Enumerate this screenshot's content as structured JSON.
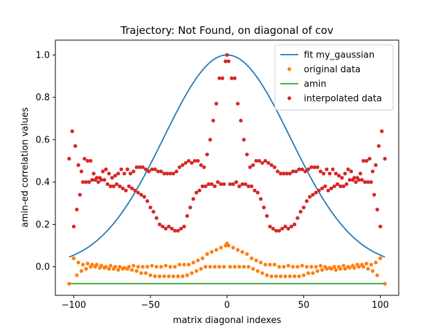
{
  "chart_data": {
    "type": "scatter",
    "title": "Trajectory: Not Found,  on diagonal of cov",
    "xlabel": "matrix diagonal indexes",
    "ylabel": "amin-ed correlation values",
    "xlim": [
      -112,
      112
    ],
    "ylim": [
      -0.135,
      1.07
    ],
    "xticks": [
      -100,
      -50,
      0,
      50,
      100
    ],
    "yticks": [
      0.0,
      0.2,
      0.4,
      0.6,
      0.8,
      1.0
    ],
    "xtick_labels": [
      "−100",
      "−50",
      "0",
      "50",
      "100"
    ],
    "ytick_labels": [
      "0.0",
      "0.2",
      "0.4",
      "0.6",
      "0.8",
      "1.0"
    ],
    "grid": false,
    "legend_position": "top-right",
    "series": [
      {
        "name": "fit my_gaussian",
        "style": "line",
        "color": "#1f77b4",
        "gaussian": {
          "amplitude": 1.0,
          "center": 0,
          "sigma": 41.5
        },
        "x_range": [
          -103,
          103
        ]
      },
      {
        "name": "original data",
        "style": "point",
        "color": "#ff7f0e",
        "x": [
          -103,
          -100,
          -97,
          -94,
          -91,
          -88,
          -85,
          -82,
          -79,
          -76,
          -73,
          -70,
          -67,
          -64,
          -61,
          -58,
          -55,
          -52,
          -49,
          -46,
          -43,
          -40,
          -37,
          -34,
          -31,
          -28,
          -25,
          -22,
          -19,
          -16,
          -13,
          -10,
          -7,
          -4,
          -1,
          0,
          1,
          4,
          7,
          10,
          13,
          16,
          19,
          22,
          25,
          28,
          31,
          34,
          37,
          40,
          43,
          46,
          49,
          52,
          55,
          58,
          61,
          64,
          67,
          70,
          73,
          76,
          79,
          82,
          85,
          88,
          91,
          94,
          97,
          100,
          103
        ],
        "y": [
          -0.08,
          0.04,
          0.02,
          0.01,
          0.015,
          0.01,
          0.01,
          0.005,
          0.0,
          0.005,
          0.0,
          0.0,
          -0.005,
          0.0,
          0.005,
          0.0,
          0.0,
          0.0,
          0.005,
          0.0,
          0.0,
          0.005,
          0.0,
          0.0,
          0.01,
          0.01,
          0.01,
          0.02,
          0.03,
          0.04,
          0.06,
          0.07,
          0.08,
          0.09,
          0.1,
          0.11,
          0.1,
          0.09,
          0.08,
          0.07,
          0.06,
          0.04,
          0.03,
          0.02,
          0.01,
          0.01,
          0.01,
          0.0,
          0.0,
          0.005,
          0.0,
          0.0,
          0.005,
          0.0,
          0.0,
          0.0,
          0.005,
          0.0,
          -0.005,
          0.0,
          0.0,
          0.005,
          0.0,
          0.005,
          0.01,
          0.01,
          0.015,
          0.01,
          0.02,
          0.04,
          -0.08
        ]
      },
      {
        "name": "original data (lower band)",
        "style": "point",
        "color": "#ff7f0e",
        "legend": false,
        "x": [
          -98,
          -95,
          -92,
          -89,
          -86,
          -83,
          -80,
          -77,
          -74,
          -71,
          -68,
          -65,
          -62,
          -59,
          -56,
          -53,
          -50,
          -47,
          -44,
          -41,
          -38,
          -35,
          -32,
          -29,
          -26,
          -23,
          -20,
          -17,
          -14,
          -11,
          -8,
          -5,
          -2,
          2,
          5,
          8,
          11,
          14,
          17,
          20,
          23,
          26,
          29,
          32,
          35,
          38,
          41,
          44,
          47,
          50,
          53,
          56,
          59,
          62,
          65,
          68,
          71,
          74,
          77,
          80,
          83,
          86,
          89,
          92,
          95,
          98
        ],
        "y": [
          -0.04,
          -0.02,
          -0.01,
          0.0,
          0.0,
          -0.005,
          -0.005,
          -0.01,
          -0.01,
          -0.015,
          -0.01,
          -0.01,
          -0.015,
          -0.02,
          -0.03,
          -0.03,
          -0.04,
          -0.045,
          -0.045,
          -0.045,
          -0.045,
          -0.045,
          -0.045,
          -0.045,
          -0.04,
          -0.03,
          -0.02,
          -0.01,
          0.0,
          0.0,
          0.0,
          0.0,
          0.0,
          0.0,
          0.0,
          0.0,
          0.0,
          0.0,
          -0.01,
          -0.02,
          -0.03,
          -0.04,
          -0.045,
          -0.045,
          -0.045,
          -0.045,
          -0.045,
          -0.045,
          -0.045,
          -0.04,
          -0.03,
          -0.03,
          -0.02,
          -0.015,
          -0.01,
          -0.01,
          -0.015,
          -0.01,
          -0.01,
          -0.005,
          -0.005,
          0.0,
          0.0,
          -0.01,
          -0.02,
          -0.04
        ]
      },
      {
        "name": "amin",
        "style": "line",
        "color": "#2ca02c",
        "x": [
          -103,
          103
        ],
        "y": [
          -0.08,
          -0.08
        ]
      },
      {
        "name": "interpolated data",
        "style": "point",
        "color": "#d62728",
        "x": [
          -103,
          -101,
          -99,
          -97,
          -95,
          -93,
          -91,
          -89,
          -87,
          -85,
          -83,
          -81,
          -79,
          -77,
          -75,
          -73,
          -71,
          -69,
          -67,
          -65,
          -63,
          -61,
          -59,
          -57,
          -55,
          -53,
          -51,
          -49,
          -47,
          -45,
          -43,
          -41,
          -39,
          -37,
          -35,
          -33,
          -31,
          -29,
          -27,
          -25,
          -23,
          -21,
          -19,
          -17,
          -15,
          -13,
          -11,
          -9,
          -7,
          -5,
          -3,
          -1,
          0,
          1,
          3,
          5,
          7,
          9,
          11,
          13,
          15,
          17,
          19,
          21,
          23,
          25,
          27,
          29,
          31,
          33,
          35,
          37,
          39,
          41,
          43,
          45,
          47,
          49,
          51,
          53,
          55,
          57,
          59,
          61,
          63,
          65,
          67,
          69,
          71,
          73,
          75,
          77,
          79,
          81,
          83,
          85,
          87,
          89,
          91,
          93,
          95,
          97,
          99,
          101,
          103
        ],
        "y": [
          0.51,
          0.64,
          0.57,
          0.48,
          0.45,
          0.51,
          0.5,
          0.5,
          0.44,
          0.42,
          0.42,
          0.45,
          0.46,
          0.44,
          0.42,
          0.43,
          0.44,
          0.46,
          0.44,
          0.46,
          0.44,
          0.45,
          0.47,
          0.47,
          0.47,
          0.46,
          0.45,
          0.46,
          0.46,
          0.45,
          0.45,
          0.44,
          0.44,
          0.44,
          0.44,
          0.45,
          0.47,
          0.48,
          0.49,
          0.5,
          0.49,
          0.5,
          0.5,
          0.48,
          0.47,
          0.53,
          0.6,
          0.69,
          0.77,
          0.89,
          0.89,
          0.97,
          1.0,
          0.97,
          0.89,
          0.89,
          0.77,
          0.69,
          0.6,
          0.53,
          0.47,
          0.48,
          0.5,
          0.5,
          0.49,
          0.5,
          0.49,
          0.48,
          0.47,
          0.45,
          0.44,
          0.44,
          0.44,
          0.44,
          0.45,
          0.45,
          0.46,
          0.46,
          0.45,
          0.46,
          0.47,
          0.47,
          0.47,
          0.45,
          0.44,
          0.46,
          0.44,
          0.46,
          0.44,
          0.43,
          0.42,
          0.44,
          0.46,
          0.45,
          0.42,
          0.42,
          0.44,
          0.5,
          0.5,
          0.51,
          0.45,
          0.48,
          0.57,
          0.64,
          0.51
        ]
      },
      {
        "name": "interpolated data (lower band)",
        "style": "point",
        "color": "#d62728",
        "legend": false,
        "x": [
          -100,
          -98,
          -96,
          -94,
          -92,
          -90,
          -88,
          -86,
          -84,
          -82,
          -80,
          -78,
          -76,
          -74,
          -72,
          -70,
          -68,
          -66,
          -64,
          -62,
          -60,
          -58,
          -56,
          -54,
          -52,
          -50,
          -48,
          -46,
          -44,
          -42,
          -40,
          -38,
          -36,
          -34,
          -32,
          -30,
          -28,
          -26,
          -24,
          -22,
          -20,
          -18,
          -16,
          -14,
          -12,
          -10,
          -8,
          -6,
          -4,
          -2,
          2,
          4,
          6,
          8,
          10,
          12,
          14,
          16,
          18,
          20,
          22,
          24,
          26,
          28,
          30,
          32,
          34,
          36,
          38,
          40,
          42,
          44,
          46,
          48,
          50,
          52,
          54,
          56,
          58,
          60,
          62,
          64,
          66,
          68,
          70,
          72,
          74,
          76,
          78,
          80,
          82,
          84,
          86,
          88,
          90,
          92,
          94,
          96,
          98,
          100
        ],
        "y": [
          0.19,
          0.27,
          0.34,
          0.4,
          0.4,
          0.4,
          0.41,
          0.41,
          0.4,
          0.41,
          0.41,
          0.39,
          0.38,
          0.38,
          0.39,
          0.38,
          0.37,
          0.36,
          0.38,
          0.37,
          0.36,
          0.35,
          0.34,
          0.33,
          0.31,
          0.28,
          0.26,
          0.23,
          0.2,
          0.19,
          0.18,
          0.19,
          0.18,
          0.17,
          0.17,
          0.18,
          0.19,
          0.24,
          0.28,
          0.32,
          0.35,
          0.36,
          0.38,
          0.38,
          0.39,
          0.39,
          0.38,
          0.4,
          0.39,
          0.39,
          0.39,
          0.39,
          0.4,
          0.38,
          0.39,
          0.39,
          0.38,
          0.38,
          0.36,
          0.35,
          0.32,
          0.28,
          0.24,
          0.19,
          0.18,
          0.17,
          0.17,
          0.18,
          0.19,
          0.18,
          0.19,
          0.2,
          0.23,
          0.26,
          0.28,
          0.31,
          0.33,
          0.34,
          0.35,
          0.36,
          0.37,
          0.38,
          0.36,
          0.37,
          0.38,
          0.39,
          0.38,
          0.38,
          0.39,
          0.41,
          0.41,
          0.4,
          0.41,
          0.41,
          0.4,
          0.4,
          0.4,
          0.34,
          0.27,
          0.19
        ]
      }
    ]
  }
}
